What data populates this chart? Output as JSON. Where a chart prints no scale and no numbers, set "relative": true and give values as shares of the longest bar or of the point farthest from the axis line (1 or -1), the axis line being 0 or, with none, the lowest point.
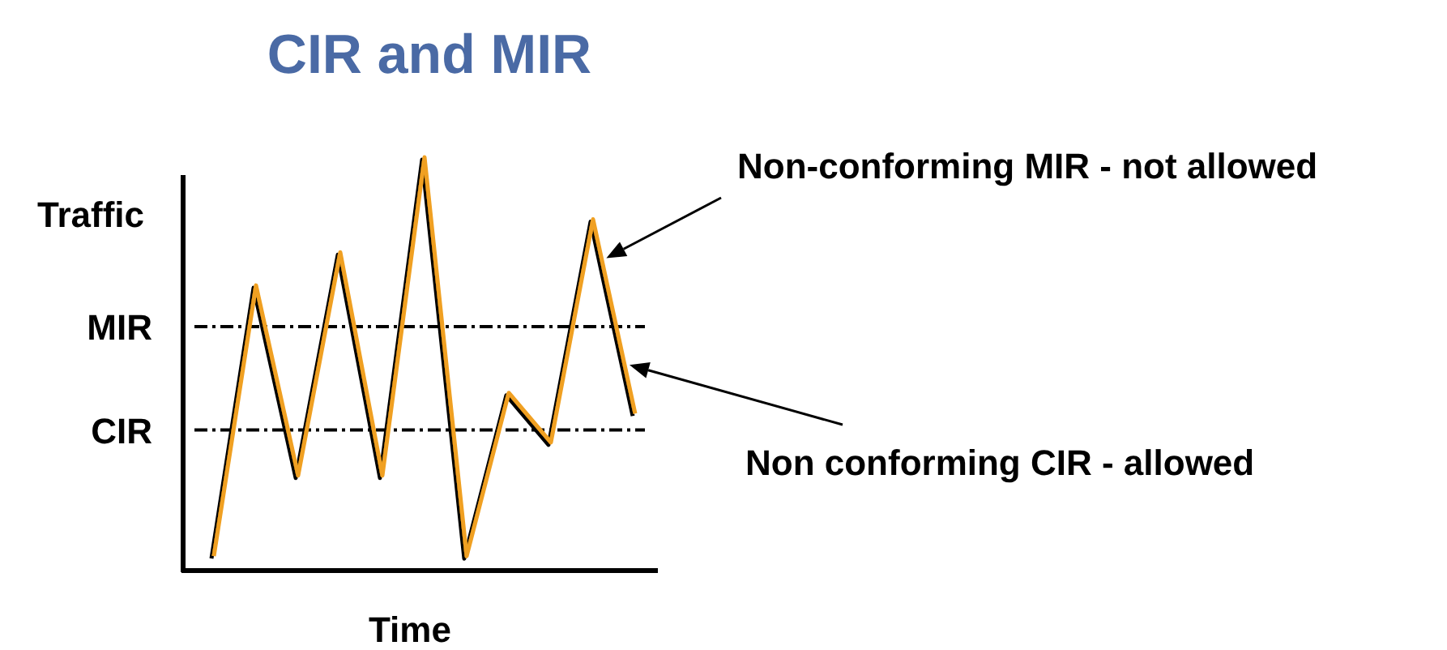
{
  "chart_data": {
    "type": "line",
    "title": "CIR and MIR",
    "xlabel": "Time",
    "ylabel": "Traffic",
    "relative": true,
    "categories": [
      null,
      null,
      null,
      null,
      null,
      null,
      null,
      null,
      null,
      null,
      null
    ],
    "series": [
      {
        "color": "#f0a020",
        "values": [
          0.035,
          0.69,
          0.23,
          0.77,
          0.23,
          1,
          0.035,
          0.43,
          0.31,
          0.85,
          0.38
        ]
      }
    ],
    "ref_lines": [
      {
        "axis": "y",
        "value": 0.59,
        "label": "MIR",
        "line_style": "dashed",
        "color": "#000000"
      },
      {
        "axis": "y",
        "value": 0.34,
        "label": "CIR",
        "line_style": "dashed",
        "color": "#000000"
      }
    ],
    "annotations": [
      "Non-conforming MIR - not allowed",
      "Non conforming CIR - allowed"
    ]
  }
}
